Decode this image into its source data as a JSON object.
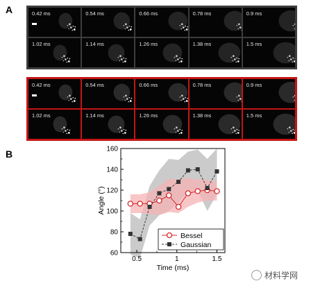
{
  "panel_a": {
    "letter": "A",
    "rows": [
      [
        "0.42 ms",
        "0.54 ms",
        "0.66 ms",
        "0.78 ms",
        "0.9 ms"
      ],
      [
        "1.02 ms",
        "1.14 ms",
        "1.26 ms",
        "1.38 ms",
        "1.5 ms"
      ]
    ],
    "border_color": "#3d3d3d"
  },
  "panel_a_red": {
    "rows": [
      [
        "0.42 ms",
        "0.54 ms",
        "0.66 ms",
        "0.78 ms",
        "0.9 ms"
      ],
      [
        "1.02 ms",
        "1.14 ms",
        "1.26 ms",
        "1.38 ms",
        "1.5 ms"
      ]
    ],
    "border_color": "#c41616"
  },
  "panel_b": {
    "letter": "B"
  },
  "chart_data": {
    "type": "line",
    "title": "",
    "xlabel": "Time (ms)",
    "ylabel": "Angle (°)",
    "xlim": [
      0.3,
      1.6
    ],
    "ylim": [
      60,
      160
    ],
    "xticks": [
      0.5,
      1.0,
      1.5
    ],
    "xtick_labels": [
      "0.5",
      "1",
      "1.5"
    ],
    "yticks": [
      60,
      80,
      100,
      120,
      140,
      160
    ],
    "yminor": [
      70,
      90,
      110,
      130,
      150
    ],
    "x": [
      0.42,
      0.54,
      0.66,
      0.78,
      0.9,
      1.02,
      1.14,
      1.26,
      1.38,
      1.5
    ],
    "series": [
      {
        "name": "Bessel",
        "values": [
          107,
          107,
          107,
          110,
          115,
          104,
          117,
          119,
          120,
          119
        ],
        "band_low": [
          98,
          98,
          97,
          96,
          99,
          98,
          104,
          108,
          110,
          110
        ],
        "band_high": [
          116,
          116,
          118,
          124,
          131,
          130,
          132,
          130,
          130,
          128
        ],
        "color": "#d62728",
        "band_color": "#f7b3b5",
        "marker": "circle-open",
        "linestyle": "solid"
      },
      {
        "name": "Gaussian",
        "values": [
          78,
          73,
          104,
          117,
          121,
          128,
          139,
          140,
          122,
          138
        ],
        "band_low": [
          58,
          55,
          86,
          96,
          100,
          108,
          118,
          120,
          100,
          116
        ],
        "band_high": [
          98,
          92,
          124,
          139,
          150,
          149,
          157,
          159,
          150,
          160
        ],
        "color": "#333333",
        "band_color": "#b9b9b9",
        "marker": "square-filled",
        "linestyle": "dashed"
      }
    ],
    "legend": "bottom-right",
    "grid": false
  },
  "watermark": {
    "text": "材料学网"
  }
}
